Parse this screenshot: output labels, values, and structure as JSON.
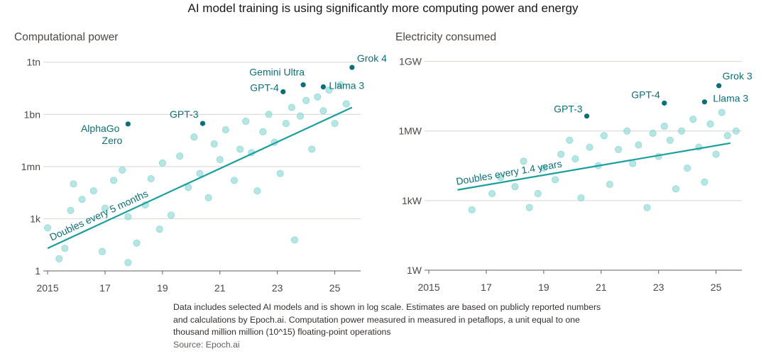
{
  "title": "AI model training is using significantly more computing power and energy",
  "note": "Data includes selected AI models and is shown in log scale. Estimates are based on publicly reported numbers and calculations by Epoch.ai. Computation power measured in measured in petaflops, a unit equal to one thousand million million (10^15) floating-point operations",
  "source": "Source: Epoch.ai",
  "chart_data": [
    {
      "type": "scatter",
      "title": "Computational power",
      "yscale": "log",
      "grid": true,
      "color": "#8fd9d5",
      "highlight_color": "#0b6e78",
      "trend_color": "#1a9e9e",
      "xlim": [
        2014.85,
        2025.9
      ],
      "ylim": [
        1,
        3000000000000.0
      ],
      "xticks": [
        {
          "value": 2015,
          "label": "2015"
        },
        {
          "value": 2017,
          "label": "17"
        },
        {
          "value": 2019,
          "label": "19"
        },
        {
          "value": 2021,
          "label": "21"
        },
        {
          "value": 2023,
          "label": "23"
        },
        {
          "value": 2025,
          "label": "25"
        }
      ],
      "yticks": [
        1,
        {
          "value": 1000,
          "label": "1k"
        },
        {
          "value": 1000000,
          "label": "1mn"
        },
        {
          "value": 1000000000,
          "label": "1bn"
        },
        {
          "value": 1000000000000,
          "label": "1tn"
        }
      ],
      "x": [
        2015.0,
        2015.4,
        2015.6,
        2015.8,
        2015.9,
        2016.2,
        2016.6,
        2016.9,
        2017.0,
        2017.3,
        2017.6,
        2017.8,
        2017.8,
        2018.1,
        2018.4,
        2018.6,
        2018.9,
        2019.0,
        2019.3,
        2019.6,
        2019.9,
        2020.1,
        2020.3,
        2020.6,
        2020.8,
        2021.0,
        2021.2,
        2021.5,
        2021.7,
        2021.9,
        2022.1,
        2022.3,
        2022.5,
        2022.7,
        2022.9,
        2023.1,
        2023.3,
        2023.5,
        2023.6,
        2023.8,
        2024.0,
        2024.2,
        2024.4,
        2024.6,
        2024.8,
        2025.0,
        2025.2,
        2025.4
      ],
      "values": [
        300,
        5,
        20,
        3000,
        100000.0,
        13000,
        40000,
        13,
        4000,
        160000,
        630000,
        1300,
        3,
        40,
        6300,
        200000,
        250,
        1600000.0,
        1600,
        4000000.0,
        63000,
        50000000.0,
        400000.0,
        16000,
        20000000.0,
        2500000.0,
        130000000.0,
        160000.0,
        10000000.0,
        400000000.0,
        6300000.0,
        40000.0,
        100000000.0,
        1000000000.0,
        25000000.0,
        400000.0,
        300000000.0,
        2500000000.0,
        60,
        800000000.0,
        6300000000.0,
        10000000.0,
        10000000000.0,
        1600000000.0,
        25000000000.0,
        300000000.0,
        50000000000.0,
        4000000000.0
      ],
      "highlights": [
        {
          "label": "AlphaGo Zero",
          "x": 2017.8,
          "y": 280000000.0
        },
        {
          "label": "GPT-3",
          "x": 2020.4,
          "y": 300000000.0
        },
        {
          "label": "GPT-4",
          "x": 2023.2,
          "y": 20000000000.0
        },
        {
          "label": "Gemini Ultra",
          "x": 2023.9,
          "y": 50000000000.0
        },
        {
          "label": "Llama 3",
          "x": 2024.6,
          "y": 38000000000.0
        },
        {
          "label": "Grok 4",
          "x": 2025.6,
          "y": 500000000000.0
        }
      ],
      "trend": {
        "label": "Doubles every 5 months",
        "x": [
          2015.0,
          2025.6
        ],
        "values": [
          20,
          2500000000.0
        ]
      }
    },
    {
      "type": "scatter",
      "title": "Electricity consumed",
      "yscale": "log",
      "grid": true,
      "color": "#8fd9d5",
      "highlight_color": "#0b6e78",
      "trend_color": "#1a9e9e",
      "xlim": [
        2014.85,
        2025.9
      ],
      "ylim": [
        1,
        3000000000.0
      ],
      "xticks": [
        {
          "value": 2015,
          "label": "2015"
        },
        {
          "value": 2017,
          "label": "17"
        },
        {
          "value": 2019,
          "label": "19"
        },
        {
          "value": 2021,
          "label": "21"
        },
        {
          "value": 2023,
          "label": "23"
        },
        {
          "value": 2025,
          "label": "25"
        }
      ],
      "yticks": [
        {
          "value": 1,
          "label": "1W"
        },
        {
          "value": 1000,
          "label": "1kW"
        },
        {
          "value": 1000000,
          "label": "1MW"
        },
        {
          "value": 1000000000,
          "label": "1GW"
        }
      ],
      "x": [
        2016.5,
        2017.2,
        2017.5,
        2018.0,
        2018.3,
        2018.5,
        2018.8,
        2019.0,
        2019.4,
        2019.6,
        2019.9,
        2020.1,
        2020.3,
        2020.6,
        2020.9,
        2021.1,
        2021.3,
        2021.6,
        2021.9,
        2022.1,
        2022.3,
        2022.6,
        2022.8,
        2023.0,
        2023.2,
        2023.4,
        2023.6,
        2023.8,
        2024.0,
        2024.2,
        2024.4,
        2024.6,
        2024.8,
        2025.0,
        2025.2,
        2025.4,
        2025.7
      ],
      "values": [
        400,
        2000,
        10000.0,
        4000,
        50000.0,
        500,
        2000,
        25000.0,
        8000,
        100000.0,
        400000.0,
        63000.0,
        1300,
        200000.0,
        32000.0,
        630000.0,
        5000,
        160000.0,
        1000000.0,
        40000.0,
        250000.0,
        500,
        800000.0,
        80000.0,
        1600000.0,
        400000.0,
        3200,
        1000000.0,
        25000.0,
        3200000.0,
        200000.0,
        6300,
        2000000.0,
        100000.0,
        6300000.0,
        630000.0,
        1000000.0
      ],
      "highlights": [
        {
          "label": "GPT-3",
          "x": 2020.5,
          "y": 4400000.0
        },
        {
          "label": "GPT-4",
          "x": 2023.2,
          "y": 16000000.0
        },
        {
          "label": "Llama 3",
          "x": 2024.6,
          "y": 18000000.0
        },
        {
          "label": "Grok 3",
          "x": 2025.1,
          "y": 90000000.0
        }
      ],
      "trend": {
        "label": "Doubles every 1.4 years",
        "x": [
          2016.0,
          2025.5
        ],
        "values": [
          2900,
          300000.0
        ]
      }
    }
  ]
}
